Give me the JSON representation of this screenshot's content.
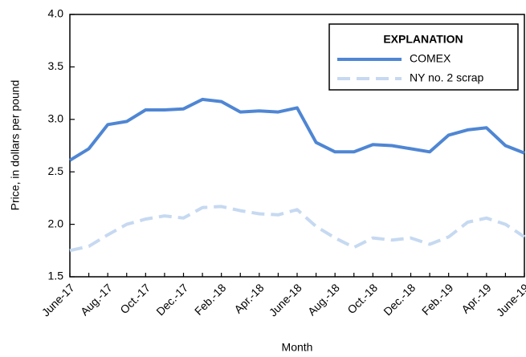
{
  "chart_data": {
    "type": "line",
    "x_label": "Month",
    "y_label": "Price, in dollars per pound",
    "legend_title": "EXPLANATION",
    "legend_position": "upper right",
    "categories": [
      "June-17",
      null,
      "Aug.-17",
      null,
      "Oct.-17",
      null,
      "Dec.-17",
      null,
      "Feb.-18",
      null,
      "Apr.-18",
      null,
      "June-18",
      null,
      "Aug.-18",
      null,
      "Oct.-18",
      null,
      "Dec.-18",
      null,
      "Feb.-19",
      null,
      "Apr.-19",
      null,
      "June-19"
    ],
    "series": [
      {
        "name": "COMEX",
        "color": "#4f86d4",
        "dashed": false,
        "values": [
          2.61,
          2.72,
          2.95,
          2.98,
          3.09,
          3.09,
          3.1,
          3.19,
          3.17,
          3.07,
          3.08,
          3.07,
          3.11,
          2.78,
          2.69,
          2.69,
          2.76,
          2.75,
          2.72,
          2.69,
          2.85,
          2.9,
          2.92,
          2.75,
          2.68
        ]
      },
      {
        "name": "NY no. 2 scrap",
        "color": "#c6d9f1",
        "dashed": true,
        "values": [
          1.75,
          1.79,
          1.9,
          2.0,
          2.05,
          2.08,
          2.06,
          2.16,
          2.17,
          2.13,
          2.1,
          2.09,
          2.14,
          1.98,
          1.87,
          1.78,
          1.87,
          1.85,
          1.87,
          1.81,
          1.88,
          2.02,
          2.06,
          2.0,
          1.88
        ]
      }
    ],
    "ylim": [
      1.5,
      4.0
    ],
    "yticks": [
      1.5,
      {
        "value": 2,
        "label": "2.0"
      },
      2.5,
      {
        "value": 3,
        "label": "3.0"
      },
      3.5,
      {
        "value": 4,
        "label": "4.0"
      }
    ]
  }
}
